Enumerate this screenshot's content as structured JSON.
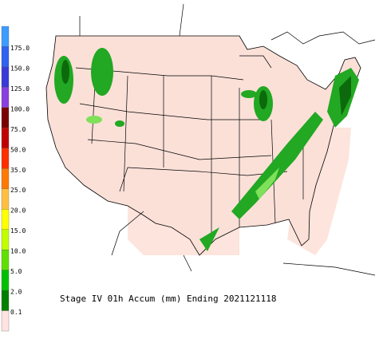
{
  "title": "Stage IV 01h Accum (mm) Ending 2021121118",
  "legend": {
    "bins": [
      {
        "color": "#3c9cff"
      },
      {
        "label": "175.0",
        "color": "#2f62f0"
      },
      {
        "label": "150.0",
        "color": "#3a3ad8"
      },
      {
        "label": "125.0",
        "color": "#8a3ee0"
      },
      {
        "label": "100.0",
        "color": "#7a0000"
      },
      {
        "label": "75.0",
        "color": "#c00000"
      },
      {
        "label": "50.0",
        "color": "#ff3000"
      },
      {
        "label": "35.0",
        "color": "#ff7a00"
      },
      {
        "label": "25.0",
        "color": "#ffc040"
      },
      {
        "label": "20.0",
        "color": "#ffff00"
      },
      {
        "label": "15.0",
        "color": "#c0ff00"
      },
      {
        "label": "10.0",
        "color": "#60e000"
      },
      {
        "label": "5.0",
        "color": "#00c000"
      },
      {
        "label": "2.0",
        "color": "#008000"
      },
      {
        "label": "0.1",
        "color": "#ffe4e1"
      }
    ]
  }
}
